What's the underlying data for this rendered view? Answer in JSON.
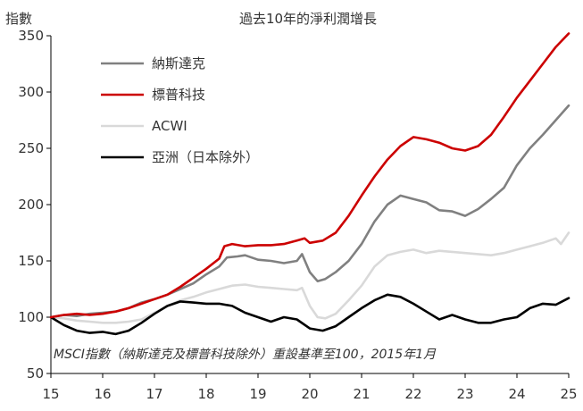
{
  "chart_data": {
    "type": "line",
    "title": "過去10年的淨利潤增長",
    "ylabel": "指數",
    "xlabel": "",
    "note": "MSCI指數（納斯達克及標普科技除外）重設基準至100，2015年1月",
    "x_ticks": [
      "15",
      "16",
      "17",
      "18",
      "19",
      "20",
      "21",
      "22",
      "23",
      "24",
      "25"
    ],
    "y_ticks": [
      50,
      100,
      150,
      200,
      250,
      300,
      350
    ],
    "xlim": [
      2015,
      2025
    ],
    "ylim": [
      50,
      350
    ],
    "grid": false,
    "legend_position": "top-left",
    "series": [
      {
        "name": "納斯達克",
        "color": "#808080",
        "x": [
          2015.0,
          2015.25,
          2015.5,
          2015.75,
          2016.0,
          2016.25,
          2016.5,
          2016.75,
          2017.0,
          2017.25,
          2017.5,
          2017.75,
          2018.0,
          2018.25,
          2018.4,
          2018.6,
          2018.75,
          2019.0,
          2019.25,
          2019.5,
          2019.75,
          2019.85,
          2020.0,
          2020.15,
          2020.3,
          2020.5,
          2020.75,
          2021.0,
          2021.25,
          2021.5,
          2021.75,
          2022.0,
          2022.25,
          2022.5,
          2022.75,
          2023.0,
          2023.25,
          2023.5,
          2023.75,
          2024.0,
          2024.25,
          2024.5,
          2024.75,
          2025.0
        ],
        "y": [
          100,
          102,
          101,
          103,
          104,
          105,
          108,
          113,
          116,
          120,
          125,
          130,
          138,
          145,
          153,
          154,
          155,
          151,
          150,
          148,
          150,
          156,
          140,
          132,
          134,
          140,
          150,
          165,
          185,
          200,
          208,
          205,
          202,
          195,
          194,
          190,
          196,
          205,
          215,
          235,
          250,
          262,
          275,
          288
        ]
      },
      {
        "name": "標普科技",
        "color": "#cc0000",
        "x": [
          2015.0,
          2015.25,
          2015.5,
          2015.75,
          2016.0,
          2016.25,
          2016.5,
          2016.75,
          2017.0,
          2017.25,
          2017.5,
          2017.75,
          2018.0,
          2018.25,
          2018.35,
          2018.5,
          2018.75,
          2019.0,
          2019.25,
          2019.5,
          2019.75,
          2019.9,
          2020.0,
          2020.25,
          2020.5,
          2020.75,
          2021.0,
          2021.25,
          2021.5,
          2021.75,
          2022.0,
          2022.25,
          2022.5,
          2022.75,
          2023.0,
          2023.25,
          2023.5,
          2023.75,
          2024.0,
          2024.25,
          2024.5,
          2024.75,
          2025.0
        ],
        "y": [
          100,
          102,
          103,
          102,
          103,
          105,
          108,
          112,
          116,
          120,
          127,
          135,
          143,
          152,
          163,
          165,
          163,
          164,
          164,
          165,
          168,
          170,
          166,
          168,
          175,
          190,
          208,
          225,
          240,
          252,
          260,
          258,
          255,
          250,
          248,
          252,
          262,
          278,
          295,
          310,
          325,
          340,
          352
        ]
      },
      {
        "name": "ACWI",
        "color": "#d9d9d9",
        "x": [
          2015.0,
          2015.25,
          2015.5,
          2015.75,
          2016.0,
          2016.25,
          2016.5,
          2016.75,
          2017.0,
          2017.25,
          2017.5,
          2017.75,
          2018.0,
          2018.25,
          2018.5,
          2018.75,
          2019.0,
          2019.25,
          2019.5,
          2019.75,
          2019.85,
          2020.0,
          2020.15,
          2020.3,
          2020.5,
          2020.75,
          2021.0,
          2021.25,
          2021.5,
          2021.75,
          2022.0,
          2022.25,
          2022.5,
          2022.75,
          2023.0,
          2023.25,
          2023.5,
          2023.75,
          2024.0,
          2024.25,
          2024.5,
          2024.75,
          2024.85,
          2025.0
        ],
        "y": [
          100,
          99,
          97,
          96,
          95,
          95,
          96,
          98,
          104,
          110,
          115,
          118,
          122,
          125,
          128,
          129,
          127,
          126,
          125,
          124,
          126,
          110,
          100,
          99,
          103,
          115,
          128,
          145,
          155,
          158,
          160,
          157,
          159,
          158,
          157,
          156,
          155,
          157,
          160,
          163,
          166,
          170,
          165,
          175
        ]
      },
      {
        "name": "亞洲（日本除外）",
        "color": "#000000",
        "x": [
          2015.0,
          2015.25,
          2015.5,
          2015.75,
          2016.0,
          2016.25,
          2016.5,
          2016.75,
          2017.0,
          2017.25,
          2017.5,
          2017.75,
          2018.0,
          2018.25,
          2018.5,
          2018.75,
          2019.0,
          2019.25,
          2019.5,
          2019.75,
          2020.0,
          2020.25,
          2020.5,
          2020.75,
          2021.0,
          2021.25,
          2021.5,
          2021.75,
          2022.0,
          2022.25,
          2022.5,
          2022.75,
          2023.0,
          2023.25,
          2023.5,
          2023.75,
          2024.0,
          2024.25,
          2024.5,
          2024.75,
          2025.0
        ],
        "y": [
          100,
          93,
          88,
          86,
          87,
          85,
          88,
          95,
          103,
          110,
          114,
          113,
          112,
          112,
          110,
          104,
          100,
          96,
          100,
          98,
          90,
          88,
          92,
          100,
          108,
          115,
          120,
          118,
          112,
          105,
          98,
          102,
          98,
          95,
          95,
          98,
          100,
          108,
          112,
          111,
          117
        ]
      }
    ]
  }
}
